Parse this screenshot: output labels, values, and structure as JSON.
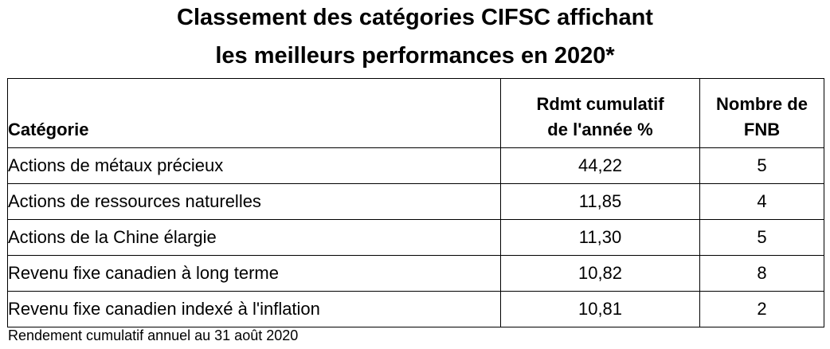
{
  "title": {
    "line1": "Classement des catégories CIFSC affichant",
    "line2": "les meilleurs performances en 2020*"
  },
  "table": {
    "headers": {
      "category": "Catégorie",
      "return_line1": "Rdmt cumulatif",
      "return_line2": "de l'année %",
      "count_line1": "Nombre de",
      "count_line2": "FNB"
    },
    "rows": [
      {
        "category": "Actions de métaux précieux",
        "return": "44,22",
        "count": "5"
      },
      {
        "category": "Actions de ressources naturelles",
        "return": "11,85",
        "count": "4"
      },
      {
        "category": "Actions de la Chine élargie",
        "return": "11,30",
        "count": "5"
      },
      {
        "category": "Revenu fixe canadien à long terme",
        "return": "10,82",
        "count": "8"
      },
      {
        "category": "Revenu fixe canadien indexé à l'inflation",
        "return": "10,81",
        "count": "2"
      }
    ]
  },
  "footnote": "Rendement cumulatif annuel au 31 août 2020"
}
